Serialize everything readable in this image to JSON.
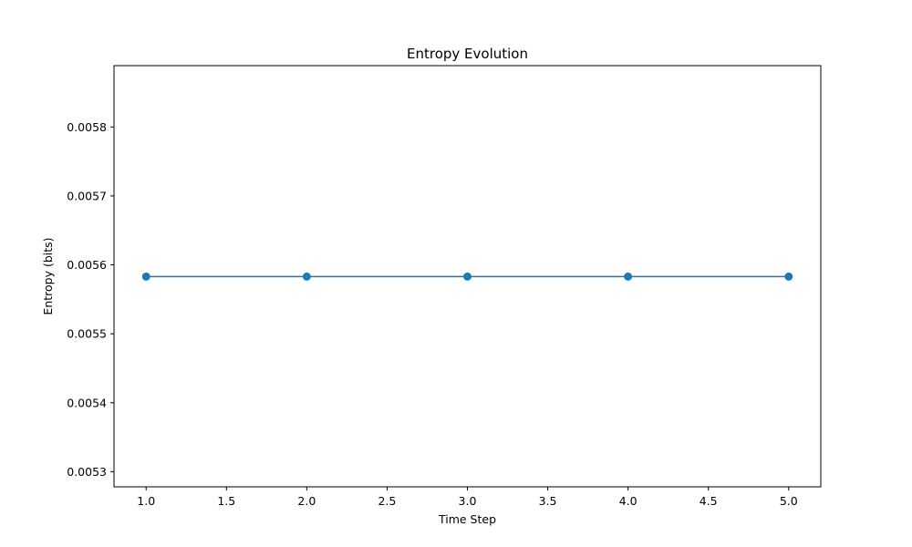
{
  "chart_data": {
    "type": "line",
    "title": "Entropy Evolution",
    "xlabel": "Time Step",
    "ylabel": "Entropy (bits)",
    "x": [
      1.0,
      2.0,
      3.0,
      4.0,
      5.0
    ],
    "series": [
      {
        "values": [
          0.005583,
          0.005583,
          0.005583,
          0.005583,
          0.005583
        ],
        "color": "#1f77b4",
        "marker": "circle"
      }
    ],
    "xlim": [
      0.8,
      5.2
    ],
    "ylim": [
      0.005278,
      0.005889
    ],
    "xticks": [
      1.0,
      1.5,
      2.0,
      2.5,
      3.0,
      3.5,
      4.0,
      4.5,
      5.0
    ],
    "xtick_labels": [
      "1.0",
      "1.5",
      "2.0",
      "2.5",
      "3.0",
      "3.5",
      "4.0",
      "4.5",
      "5.0"
    ],
    "yticks": [
      0.0053,
      0.0054,
      0.0055,
      0.0056,
      0.0057,
      0.0058
    ],
    "ytick_labels": [
      "0.0053",
      "0.0054",
      "0.0055",
      "0.0056",
      "0.0057",
      "0.0058"
    ],
    "grid": false,
    "legend": "none"
  }
}
